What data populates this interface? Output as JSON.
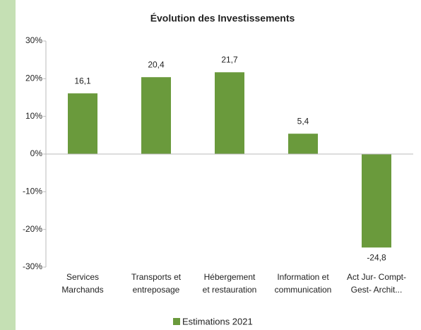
{
  "chart_data": {
    "type": "bar",
    "title": "Évolution des Investissements",
    "categories": [
      [
        "Services",
        "Marchands"
      ],
      [
        "Transports et",
        "entreposage"
      ],
      [
        "Hébergement",
        "et restauration"
      ],
      [
        "Information et",
        "communication"
      ],
      [
        "Act Jur- Compt-",
        "Gest- Archit..."
      ]
    ],
    "series": [
      {
        "name": "Estimations 2021",
        "color": "#6a9a3c",
        "values": [
          16.1,
          20.4,
          21.7,
          5.4,
          -24.8
        ],
        "value_labels": [
          "16,1",
          "20,4",
          "21,7",
          "5,4",
          "-24,8"
        ]
      }
    ],
    "ylim": [
      -30,
      30
    ],
    "yticks": [
      {
        "value": -30,
        "label": "-30%"
      },
      {
        "value": -20,
        "label": "-20%"
      },
      {
        "value": -10,
        "label": "-10%"
      },
      {
        "value": 0,
        "label": "0%"
      },
      {
        "value": 10,
        "label": "10%"
      },
      {
        "value": 20,
        "label": "20%"
      },
      {
        "value": 30,
        "label": "30%"
      }
    ],
    "grid": false,
    "legend": "bottom"
  }
}
